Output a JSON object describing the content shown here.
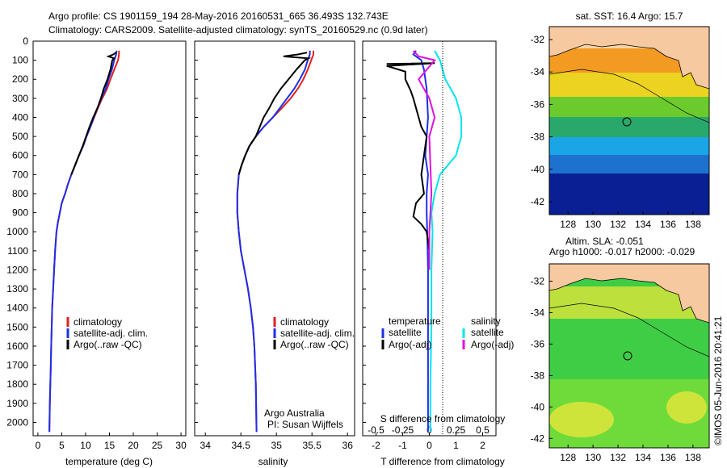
{
  "header": {
    "line1": "Argo profile: CS 1901159_194 28-May-2016 20160531_665 36.493S 132.743E",
    "line2": "Climatology: CARS2009. Satellite-adjusted climatology: synTS_20160529.nc (0.9d later)"
  },
  "colors": {
    "climatology": "#e02020",
    "satellite": "#1f2ee8",
    "argo": "#000000",
    "sat_salinity": "#00e5ee",
    "argo_salinity": "#e010e0"
  },
  "depth_ticks": [
    "0",
    "100",
    "200",
    "300",
    "400",
    "500",
    "600",
    "700",
    "800",
    "900",
    "1000",
    "1100",
    "1200",
    "1300",
    "1400",
    "1500",
    "1600",
    "1700",
    "1800",
    "1900",
    "2000"
  ],
  "temperature_panel": {
    "xticks": [
      "0",
      "5",
      "10",
      "15",
      "20",
      "25",
      "30"
    ],
    "xlabel": "temperature (deg C)",
    "legend": [
      "climatology",
      "satellite-adj. clim.",
      "Argo(..raw -QC)"
    ]
  },
  "salinity_panel": {
    "xticks": [
      "34",
      "34.5",
      "35",
      "35.5",
      "36"
    ],
    "xlabel": "salinity",
    "legend": [
      "climatology",
      "satellite-adj. clim.",
      "Argo(..raw -QC)"
    ],
    "note1": "Argo Australia",
    "note2": "PI: Susan Wijffels"
  },
  "difference_panel": {
    "xticks": [
      "-2",
      "-1",
      "0",
      "1",
      "2"
    ],
    "sticks": [
      "-0.5",
      "-0.25",
      "0",
      "0.25",
      "0.5"
    ],
    "xlabel": "T difference from climatology",
    "slabel": "S difference from climatology",
    "legend_t_title": "temperature",
    "legend_s_title": "salinity",
    "legend_t": [
      "satellite",
      "Argo(-adj)"
    ],
    "legend_s": [
      "satellite",
      "Argo(-adj)"
    ]
  },
  "map_top": {
    "title": "sat. SST: 16.4 Argo: 15.7",
    "yticks": [
      "-32",
      "-34",
      "-36",
      "-38",
      "-40",
      "-42"
    ],
    "xticks": [
      "128",
      "130",
      "132",
      "134",
      "136",
      "138"
    ]
  },
  "map_bottom": {
    "title1": "Altim. SLA: -0.051",
    "title2": "Argo h1000: -0.017 h2000: -0.029",
    "yticks": [
      "-32",
      "-34",
      "-36",
      "-38",
      "-40",
      "-42"
    ],
    "xticks": [
      "128",
      "130",
      "132",
      "134",
      "136",
      "138"
    ]
  },
  "stamp": "©IMOS 05-Jun-2016 20:41:21",
  "chart_data": [
    {
      "type": "line",
      "title": "",
      "xlabel": "temperature (deg C)",
      "ylabel": "",
      "xlim": [
        -1,
        31
      ],
      "ylim": [
        2070,
        0
      ],
      "series": [
        {
          "name": "climatology",
          "x": [
            17,
            17,
            16.8,
            16,
            15.2,
            14.5,
            13.5,
            12.6,
            11.8,
            11,
            10.2,
            9.5,
            8.6,
            7.8,
            7,
            6.3,
            5.7,
            5,
            4.6,
            4.2,
            3.9,
            3.6,
            3.4,
            3.2,
            3,
            2.9,
            2.8,
            2.7,
            2.6,
            2.5,
            2.4
          ],
          "y": [
            50,
            70,
            100,
            150,
            200,
            250,
            300,
            350,
            400,
            450,
            500,
            550,
            600,
            650,
            700,
            750,
            800,
            850,
            900,
            950,
            1000,
            1100,
            1200,
            1300,
            1400,
            1500,
            1600,
            1700,
            1800,
            1900,
            2050
          ]
        },
        {
          "name": "satellite-adj. clim.",
          "x": [
            16.5,
            16.4,
            16,
            15.5,
            14.8,
            14.2,
            13.3,
            12.5,
            11.7,
            11,
            10.2,
            9.5,
            8.6,
            7.8,
            7,
            6.3,
            5.7,
            5,
            4.6,
            4.2,
            3.9,
            3.6,
            3.4,
            3.2,
            3,
            2.9,
            2.8,
            2.7,
            2.6,
            2.5,
            2.4
          ],
          "y": [
            50,
            70,
            100,
            150,
            200,
            250,
            300,
            350,
            400,
            450,
            500,
            550,
            600,
            650,
            700,
            750,
            800,
            850,
            900,
            950,
            1000,
            1100,
            1200,
            1300,
            1400,
            1500,
            1600,
            1700,
            1800,
            1900,
            2050
          ]
        },
        {
          "name": "Argo(..raw -QC)",
          "x": [
            16.4,
            15.8,
            14.8,
            16,
            15.6,
            15.2,
            14.6,
            13.8,
            13.2,
            12.5,
            11.6,
            10.8,
            10.1,
            9.4,
            8.6,
            7.8,
            7
          ],
          "y": [
            60,
            70,
            80,
            90,
            100,
            150,
            200,
            250,
            300,
            350,
            400,
            450,
            500,
            550,
            600,
            650,
            700
          ]
        }
      ]
    },
    {
      "type": "line",
      "title": "",
      "xlabel": "salinity",
      "ylabel": "",
      "xlim": [
        33.85,
        36.1
      ],
      "ylim": [
        2070,
        0
      ],
      "series": [
        {
          "name": "climatology",
          "x": [
            35.52,
            35.52,
            35.49,
            35.44,
            35.38,
            35.3,
            35.2,
            35.08,
            34.95,
            34.82,
            34.71,
            34.62,
            34.56,
            34.51,
            34.47,
            34.45,
            34.45,
            34.47,
            34.5,
            34.55,
            34.6,
            34.64,
            34.67,
            34.69,
            34.71,
            34.72
          ],
          "y": [
            50,
            70,
            100,
            150,
            200,
            250,
            300,
            350,
            400,
            450,
            500,
            550,
            600,
            650,
            700,
            800,
            900,
            1000,
            1100,
            1200,
            1300,
            1400,
            1500,
            1600,
            1800,
            2050
          ]
        },
        {
          "name": "satellite-adj. clim.",
          "x": [
            35.47,
            35.47,
            35.44,
            35.4,
            35.33,
            35.25,
            35.15,
            35.05,
            34.95,
            34.82,
            34.71,
            34.62,
            34.56,
            34.51,
            34.47,
            34.45,
            34.45,
            34.47,
            34.5,
            34.55,
            34.6,
            34.64,
            34.67,
            34.69,
            34.71,
            34.72
          ],
          "y": [
            50,
            70,
            100,
            150,
            200,
            250,
            300,
            350,
            400,
            450,
            500,
            550,
            600,
            650,
            700,
            800,
            900,
            1000,
            1100,
            1200,
            1300,
            1400,
            1500,
            1600,
            1800,
            2050
          ]
        },
        {
          "name": "Argo(..raw -QC)",
          "x": [
            35.43,
            35.3,
            35.1,
            35.45,
            35.4,
            35.28,
            35.17,
            35.06,
            34.97,
            34.9,
            34.82,
            34.71,
            34.62,
            34.56,
            34.51,
            34.47
          ],
          "y": [
            60,
            70,
            80,
            90,
            100,
            150,
            200,
            250,
            300,
            350,
            400,
            500,
            550,
            600,
            650,
            700
          ]
        }
      ]
    },
    {
      "type": "line",
      "title": "",
      "xlabel": "T difference from climatology",
      "ylabel": "",
      "xlim": [
        -2.5,
        2.5
      ],
      "ylim": [
        2070,
        0
      ],
      "series": [
        {
          "name": "temperature satellite",
          "x": [
            -0.5,
            -0.6,
            -0.3,
            -0.2,
            -0.1,
            -0.05,
            -0.1,
            -0.15,
            -0.05,
            -0.1,
            -0.1,
            -0.08,
            -0.05,
            -0.05,
            -0.05,
            -0.05
          ],
          "y": [
            50,
            70,
            100,
            150,
            250,
            400,
            500,
            600,
            700,
            800,
            900,
            1000,
            1200,
            1500,
            1800,
            2050
          ]
        },
        {
          "name": "temperature Argo(-adj)",
          "x": [
            -1.6,
            0.2,
            -1.6,
            -0.9,
            -0.9,
            -0.8,
            -0.7,
            -0.6,
            -0.5,
            -0.4,
            -0.3,
            -0.1,
            -0.3,
            -0.2,
            -0.5,
            -0.6,
            -0.3,
            -0.1,
            0
          ],
          "y": [
            120,
            115,
            130,
            160,
            200,
            230,
            260,
            300,
            350,
            400,
            450,
            500,
            700,
            800,
            850,
            920,
            960,
            1000,
            1100
          ]
        },
        {
          "name": "salinity satellite",
          "x": [
            0.05,
            0.1,
            0.15,
            0.25,
            0.3,
            0.3,
            0.25,
            0.1,
            0.05,
            0.02,
            0.03,
            0.02,
            0.02,
            0.01,
            0.01
          ],
          "y": [
            50,
            100,
            200,
            300,
            400,
            500,
            600,
            700,
            800,
            900,
            1000,
            1200,
            1500,
            1800,
            2050
          ]
        },
        {
          "name": "salinity Argo(-adj)",
          "x": [
            -0.15,
            -0.1,
            0.05,
            -0.1,
            0,
            0.05,
            0,
            0.02,
            0,
            0
          ],
          "y": [
            50,
            80,
            100,
            200,
            300,
            400,
            500,
            800,
            1000,
            1200
          ]
        }
      ]
    }
  ]
}
